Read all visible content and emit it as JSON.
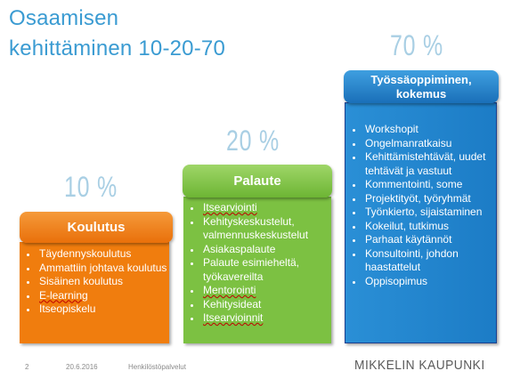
{
  "title": {
    "line1": "Osaamisen",
    "line2": "kehittäminen 10-20-70"
  },
  "columns": [
    {
      "percent": "10 %",
      "heading": "Koulutus",
      "color": "#f07d0e",
      "items": [
        "Täydennyskoulutus",
        "Ammattiin johtava koulutus",
        "Sisäinen koulutus",
        "E-learning",
        "Itseopiskelu"
      ]
    },
    {
      "percent": "20 %",
      "heading": "Palaute",
      "color": "#7cc142",
      "items": [
        "Itsearviointi",
        "Kehityskeskustelut, valmennuskeskustelut",
        "Asiakaspalaute",
        "Palaute esimieheltä, työkavereilta",
        "Mentorointi",
        "Kehitysideat",
        "Itsearvioinnit"
      ]
    },
    {
      "percent": "70 %",
      "heading": "Työssäoppiminen, kokemus",
      "color": "#1f8ad2",
      "items": [
        "Workshopit",
        "Ongelmanratkaisu",
        "Kehittämistehtävät, uudet tehtävät ja vastuut",
        "Kommentointi, some",
        "Projektityöt, työryhmät",
        "Työnkierto, sijaistaminen",
        "Kokeilut, tutkimus",
        "Parhaat käytännöt",
        "Konsultointi, johdon haastattelut",
        "Oppisopimus"
      ]
    }
  ],
  "footer": {
    "slide_number": "2",
    "date": "20.6.2016",
    "department": "Henkilöstöpalvelut",
    "brand": "MIKKELIN KAUPUNKI"
  }
}
